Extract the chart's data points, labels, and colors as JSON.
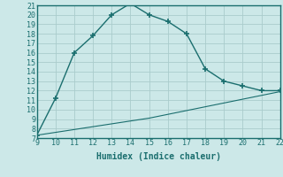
{
  "xlabel": "Humidex (Indice chaleur)",
  "background_color": "#cce8e8",
  "line_color": "#1a6e6e",
  "grid_color": "#aacccc",
  "series1_x": [
    9,
    10,
    11,
    12,
    13,
    14,
    15,
    16,
    17,
    18,
    19,
    20,
    21,
    22
  ],
  "series1_y": [
    7.3,
    11.2,
    16.0,
    17.8,
    20.0,
    21.2,
    20.0,
    19.3,
    18.0,
    14.3,
    13.0,
    12.5,
    12.0,
    12.0
  ],
  "series2_x": [
    9,
    10,
    11,
    12,
    13,
    14,
    15,
    16,
    17,
    18,
    19,
    20,
    21,
    22
  ],
  "series2_y": [
    7.3,
    7.6,
    7.9,
    8.2,
    8.5,
    8.8,
    9.1,
    9.5,
    9.9,
    10.3,
    10.7,
    11.1,
    11.5,
    11.9
  ],
  "xlim": [
    9,
    22
  ],
  "ylim": [
    7,
    21
  ],
  "yticks": [
    7,
    8,
    9,
    10,
    11,
    12,
    13,
    14,
    15,
    16,
    17,
    18,
    19,
    20,
    21
  ],
  "xticks": [
    9,
    10,
    11,
    12,
    13,
    14,
    15,
    16,
    17,
    18,
    19,
    20,
    21,
    22
  ],
  "tick_fontsize": 6.0,
  "xlabel_fontsize": 7.0,
  "marker": "+",
  "marker_size": 5,
  "linewidth1": 1.0,
  "linewidth2": 0.8
}
